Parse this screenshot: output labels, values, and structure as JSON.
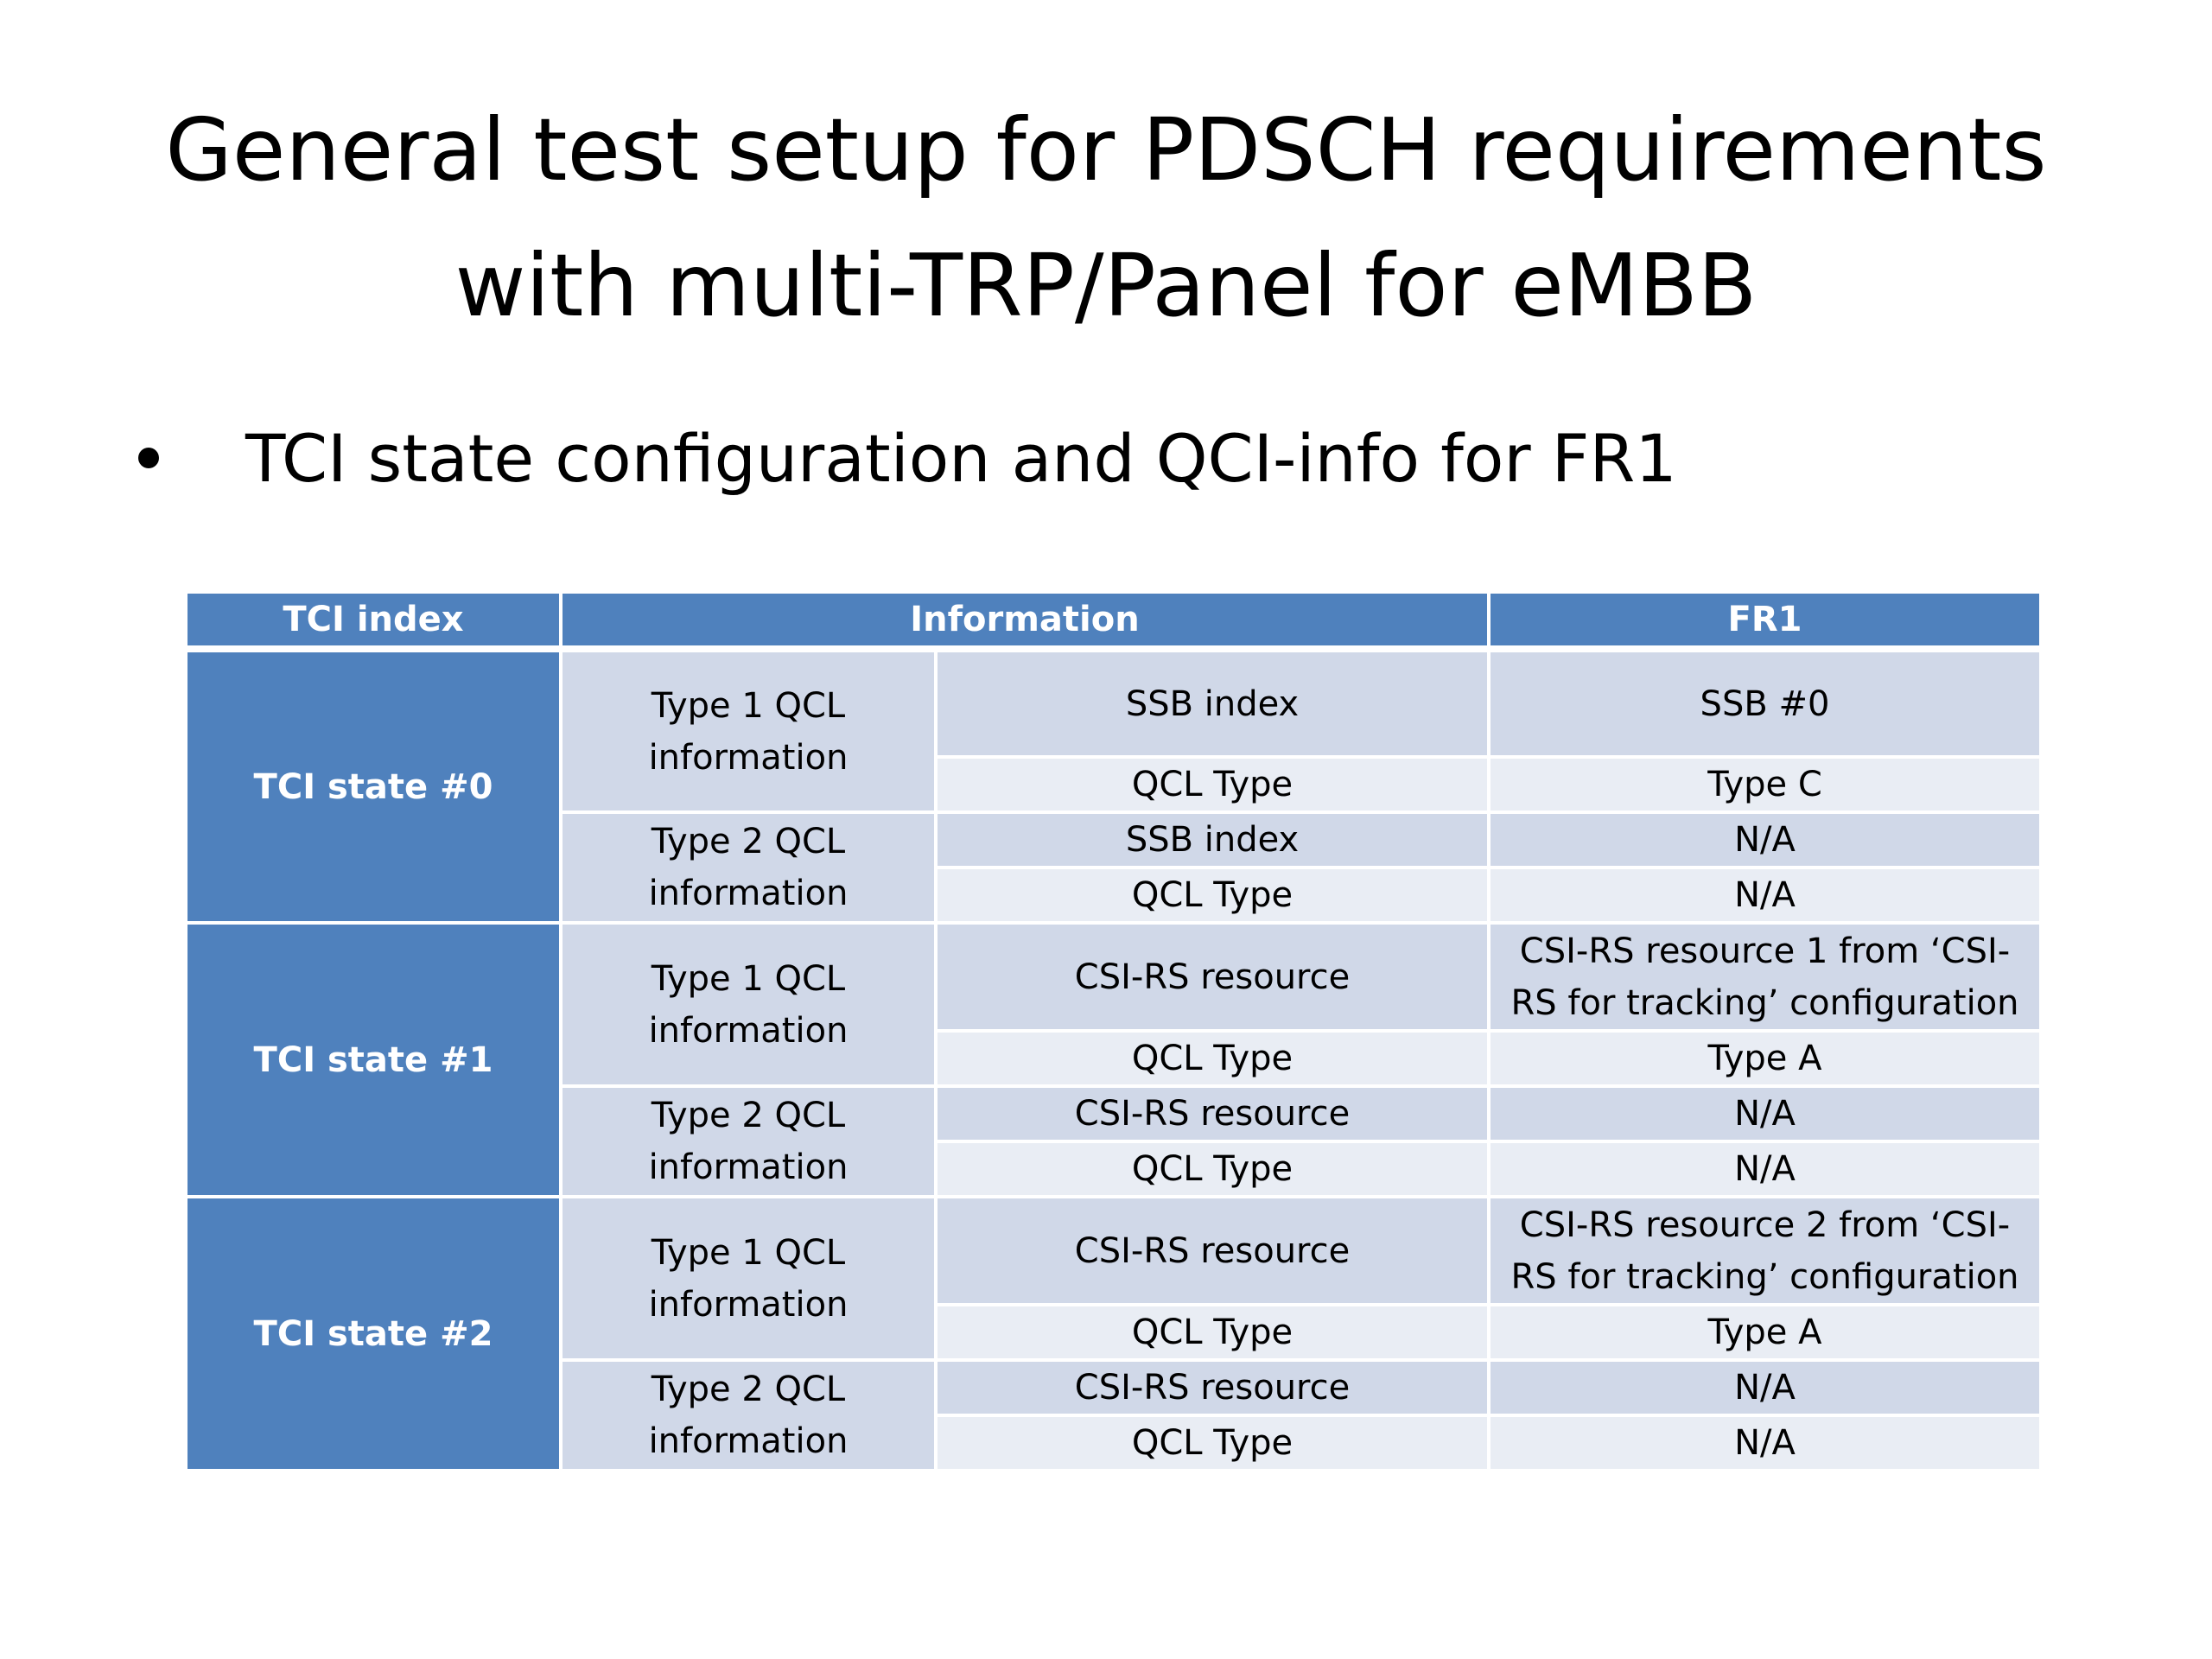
{
  "slide": {
    "title_line1": "General test setup for PDSCH requirements",
    "title_line2": "with multi-TRP/Panel for eMBB",
    "bullet": "TCI state configuration and QCI-info for FR1"
  },
  "table": {
    "headers": {
      "tci_index": "TCI index",
      "information": "Information",
      "fr1": "FR1"
    },
    "states": [
      {
        "name": "TCI state #0",
        "groups": [
          {
            "label": "Type 1 QCL information",
            "rows": [
              {
                "field": "SSB index",
                "value": "SSB #0"
              },
              {
                "field": "QCL Type",
                "value": "Type C"
              }
            ]
          },
          {
            "label": "Type 2 QCL information",
            "rows": [
              {
                "field": "SSB index",
                "value": "N/A"
              },
              {
                "field": "QCL Type",
                "value": "N/A"
              }
            ]
          }
        ]
      },
      {
        "name": "TCI state #1",
        "groups": [
          {
            "label": "Type 1 QCL information",
            "rows": [
              {
                "field": "CSI-RS resource",
                "value": "CSI-RS resource 1 from ‘CSI-RS for tracking’ configuration"
              },
              {
                "field": "QCL Type",
                "value": "Type A"
              }
            ]
          },
          {
            "label": "Type 2 QCL information",
            "rows": [
              {
                "field": "CSI-RS resource",
                "value": "N/A"
              },
              {
                "field": "QCL Type",
                "value": "N/A"
              }
            ]
          }
        ]
      },
      {
        "name": "TCI state #2",
        "groups": [
          {
            "label": "Type 1 QCL information",
            "rows": [
              {
                "field": "CSI-RS resource",
                "value": "CSI-RS resource 2 from ‘CSI-RS for tracking’ configuration"
              },
              {
                "field": "QCL Type",
                "value": "Type A"
              }
            ]
          },
          {
            "label": "Type 2 QCL information",
            "rows": [
              {
                "field": "CSI-RS resource",
                "value": "N/A"
              },
              {
                "field": "QCL Type",
                "value": "N/A"
              }
            ]
          }
        ]
      }
    ]
  }
}
